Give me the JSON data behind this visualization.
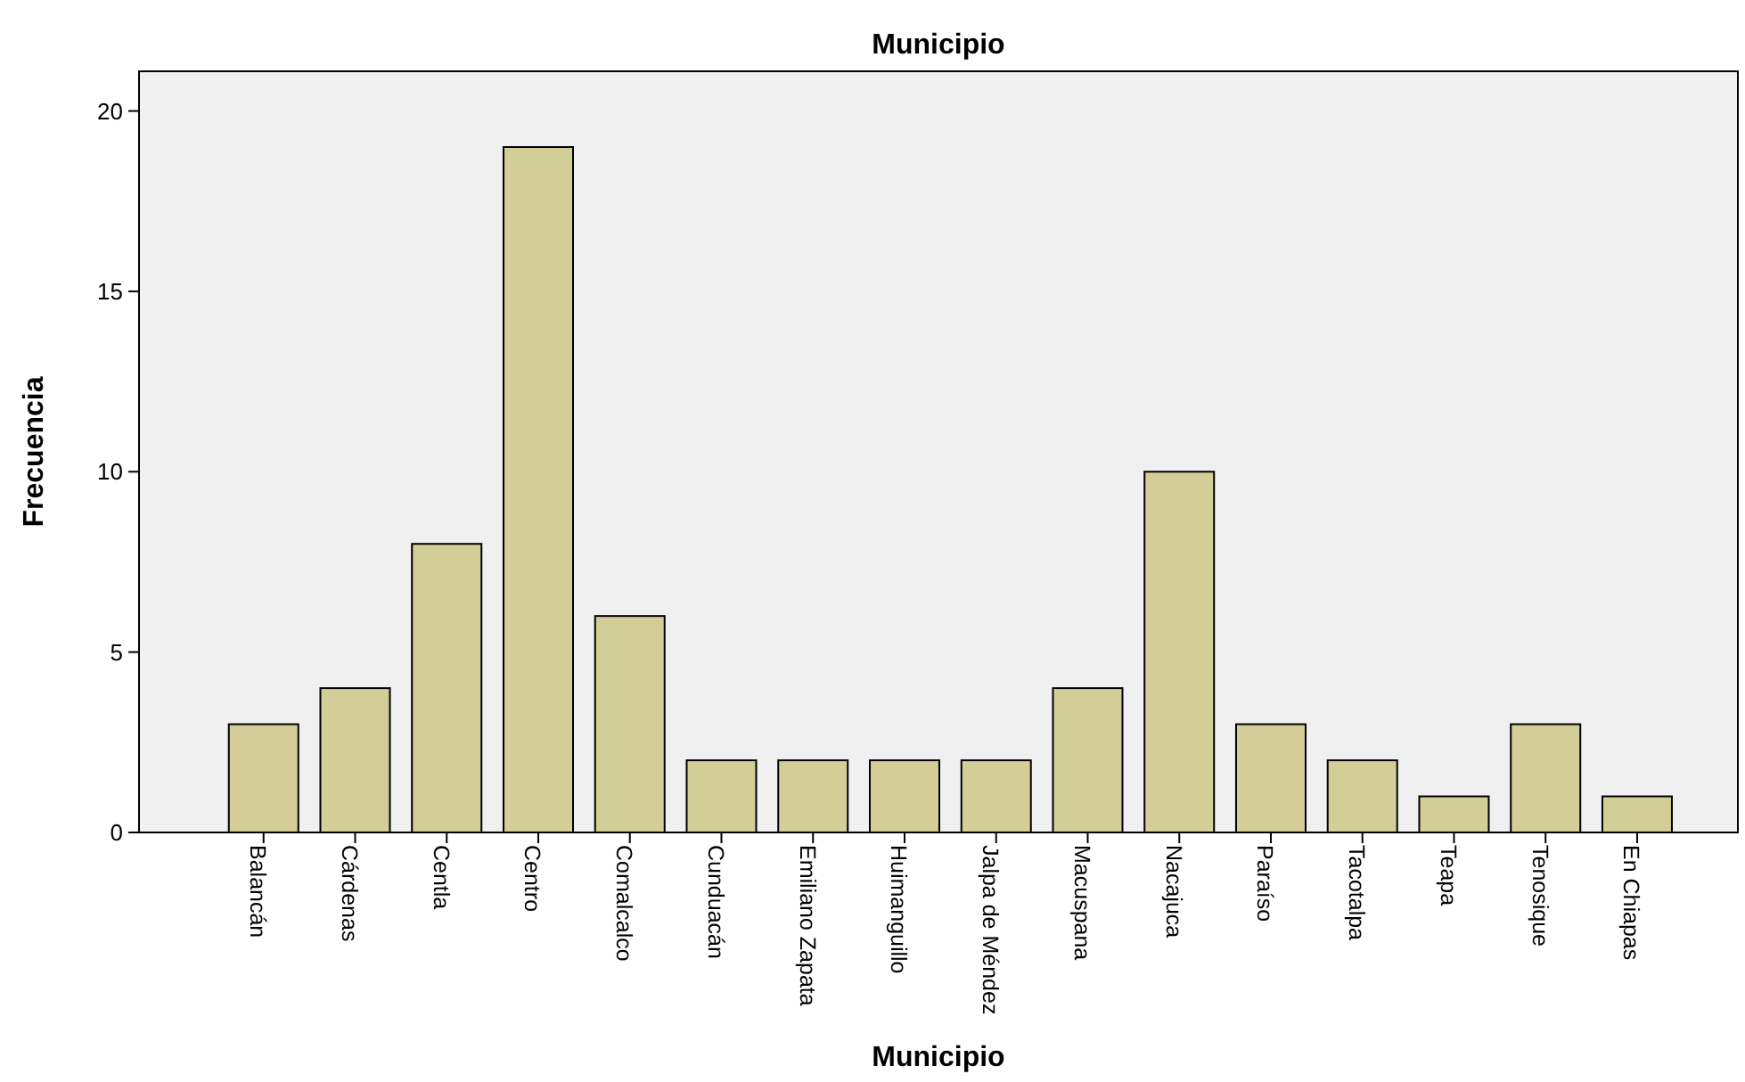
{
  "chart_data": {
    "type": "bar",
    "title": "Municipio",
    "xlabel": "Municipio",
    "ylabel": "Frecuencia",
    "categories": [
      "Balancán",
      "Cárdenas",
      "Centla",
      "Centro",
      "Comalcalco",
      "Cunduacán",
      "Emiliano Zapata",
      "Huimanguillo",
      "Jalpa de Méndez",
      "Macuspana",
      "Nacajuca",
      "Paraíso",
      "Tacotalpa",
      "Teapa",
      "Tenosique",
      "En Chiapas"
    ],
    "values": [
      3,
      4,
      8,
      19,
      6,
      2,
      2,
      2,
      2,
      4,
      10,
      3,
      2,
      1,
      3,
      1
    ],
    "color": "#d3ce97",
    "ylim": [
      0,
      21.1
    ],
    "yticks": [
      0,
      5,
      10,
      15,
      20
    ],
    "grid": false
  }
}
